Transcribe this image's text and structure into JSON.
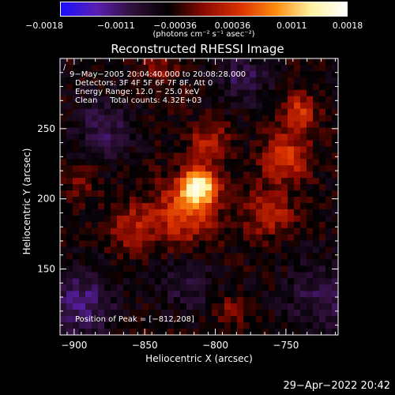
{
  "chart_data": {
    "type": "heatmap",
    "title": "Reconstructed RHESSI Image",
    "xlabel": "Heliocentric X (arcsec)",
    "ylabel": "Heliocentric Y (arcsec)",
    "xlim": [
      -910,
      -713
    ],
    "ylim": [
      103,
      300
    ],
    "x_ticks": [
      -900,
      -850,
      -800,
      -750
    ],
    "x_tick_labels": [
      "−900",
      "−850",
      "−800",
      "−750"
    ],
    "y_ticks": [
      150,
      200,
      250
    ],
    "y_tick_labels": [
      "150",
      "200",
      "250"
    ],
    "colorbar": {
      "range": [
        -0.0018,
        0.0018
      ],
      "ticks": [
        -0.0018,
        -0.0011,
        -0.00036,
        0.00036,
        0.0011,
        0.0018
      ],
      "tick_labels": [
        "−0.0018",
        "−0.0011",
        "−0.00036",
        "0.00036",
        "0.0011",
        "0.0018"
      ],
      "units": "(photons cm⁻² s⁻¹ asec⁻²)",
      "colormap": [
        "#1a10ff",
        "#5a1fb0",
        "#30103a",
        "#000000",
        "#8a0a00",
        "#d83000",
        "#ff8a10",
        "#fff2a0",
        "#ffffff"
      ]
    },
    "sources": [
      {
        "x": -812,
        "y": 208,
        "amplitude": 0.0018,
        "sigma": 9
      },
      {
        "x": -822,
        "y": 190,
        "amplitude": 0.0009,
        "sigma": 16
      },
      {
        "x": -860,
        "y": 180,
        "amplitude": 0.0006,
        "sigma": 12
      },
      {
        "x": -805,
        "y": 240,
        "amplitude": 0.0007,
        "sigma": 10
      },
      {
        "x": -750,
        "y": 230,
        "amplitude": 0.0009,
        "sigma": 12
      },
      {
        "x": -740,
        "y": 262,
        "amplitude": 0.0009,
        "sigma": 8
      },
      {
        "x": -762,
        "y": 190,
        "amplitude": 0.0007,
        "sigma": 12
      },
      {
        "x": -895,
        "y": 210,
        "amplitude": 0.0004,
        "sigma": 8
      },
      {
        "x": -790,
        "y": 120,
        "amplitude": 0.0004,
        "sigma": 8
      },
      {
        "x": -840,
        "y": 290,
        "amplitude": 0.0004,
        "sigma": 9
      },
      {
        "x": -895,
        "y": 125,
        "amplitude": -0.0007,
        "sigma": 16
      },
      {
        "x": -725,
        "y": 130,
        "amplitude": -0.0005,
        "sigma": 16
      },
      {
        "x": -880,
        "y": 250,
        "amplitude": -0.0005,
        "sigma": 14
      },
      {
        "x": -780,
        "y": 285,
        "amplitude": -0.0005,
        "sigma": 12
      },
      {
        "x": -820,
        "y": 140,
        "amplitude": -0.0004,
        "sigma": 14
      }
    ],
    "peak": [
      -812,
      208
    ]
  },
  "info_lines": [
    "9−May−2005 20:04:40.000 to 20:08:28.000",
    "Detectors: 3F 4F 5F 6F 7F 8F, Att 0",
    "Energy Range: 12.0 − 25.0 keV",
    "Clean     Total counts: 4.32E+03"
  ],
  "peak_label": "Position of Peak = [−812,208]",
  "timestamp": "29−Apr−2022 20:42",
  "corner_mark": "/"
}
